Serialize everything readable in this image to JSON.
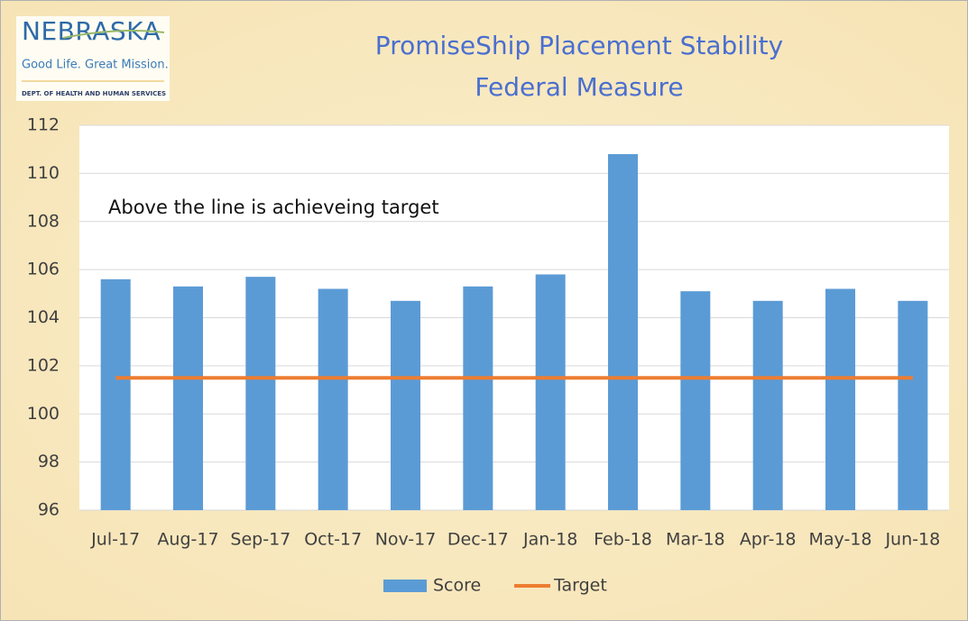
{
  "logo": {
    "name": "NEBRASKA",
    "tagline": "Good Life. Great Mission.",
    "department": "DEPT. OF HEALTH AND HUMAN SERVICES"
  },
  "chart_data": {
    "type": "bar",
    "title": [
      "PromiseShip Placement Stability",
      "Federal Measure"
    ],
    "annotation": "Above the line is achieveing target",
    "categories": [
      "Jul-17",
      "Aug-17",
      "Sep-17",
      "Oct-17",
      "Nov-17",
      "Dec-17",
      "Jan-18",
      "Feb-18",
      "Mar-18",
      "Apr-18",
      "May-18",
      "Jun-18"
    ],
    "series": [
      {
        "name": "Score",
        "type": "bar",
        "color": "#5b9bd5",
        "values": [
          105.6,
          105.3,
          105.7,
          105.2,
          104.7,
          105.3,
          105.8,
          110.8,
          105.1,
          104.7,
          105.2,
          104.7
        ]
      },
      {
        "name": "Target",
        "type": "line",
        "color": "#ed7d31",
        "values": [
          101.5,
          101.5,
          101.5,
          101.5,
          101.5,
          101.5,
          101.5,
          101.5,
          101.5,
          101.5,
          101.5,
          101.5
        ]
      }
    ],
    "ylim": [
      96,
      112
    ],
    "yticks": [
      96,
      98,
      100,
      102,
      104,
      106,
      108,
      110,
      112
    ],
    "grid": true,
    "legend": "bottom"
  }
}
